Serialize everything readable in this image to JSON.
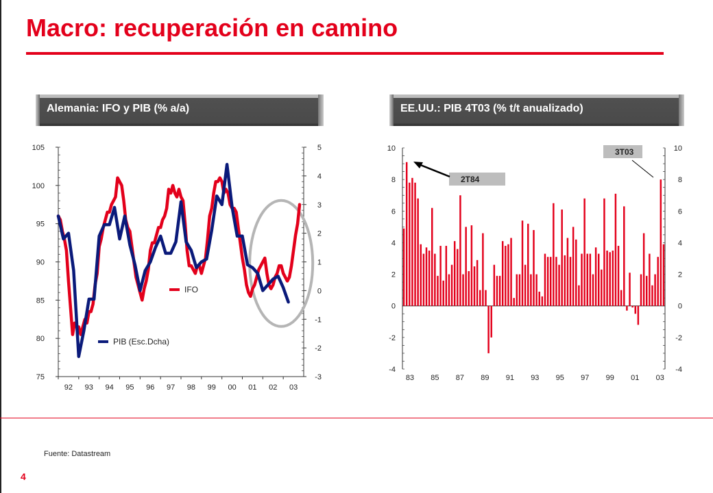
{
  "page": {
    "title": "Macro: recuperación en camino",
    "source": "Fuente: Datastream",
    "page_number": "4",
    "colors": {
      "accent": "#e3001b",
      "navy": "#0a1a7a",
      "grey": "#bdbdbd"
    }
  },
  "chart_data": [
    {
      "type": "line",
      "title": "Alemania: IFO y PIB (% a/a)",
      "x_ticks": [
        "92",
        "93",
        "94",
        "95",
        "96",
        "97",
        "98",
        "99",
        "00",
        "01",
        "02",
        "03"
      ],
      "y_left": {
        "min": 75,
        "max": 105,
        "ticks": [
          "75",
          "80",
          "85",
          "90",
          "95",
          "100",
          "105"
        ]
      },
      "y_right": {
        "min": -3,
        "max": 5,
        "ticks": [
          "-3",
          "-2",
          "-1",
          "0",
          "1",
          "2",
          "3",
          "4",
          "5"
        ]
      },
      "series": [
        {
          "name": "IFO",
          "axis": "left",
          "color": "#e3001b",
          "x": [
            1992.0,
            1992.1,
            1992.2,
            1992.3,
            1992.4,
            1992.5,
            1992.6,
            1992.7,
            1992.8,
            1992.9,
            1993.0,
            1993.1,
            1993.2,
            1993.3,
            1993.4,
            1993.5,
            1993.6,
            1993.7,
            1993.8,
            1993.9,
            1994.0,
            1994.1,
            1994.2,
            1994.3,
            1994.4,
            1994.5,
            1994.6,
            1994.7,
            1994.8,
            1994.9,
            1995.0,
            1995.1,
            1995.2,
            1995.3,
            1995.4,
            1995.5,
            1995.6,
            1995.7,
            1995.8,
            1995.9,
            1996.0,
            1996.1,
            1996.2,
            1996.3,
            1996.4,
            1996.5,
            1996.6,
            1996.7,
            1996.8,
            1996.9,
            1997.0,
            1997.1,
            1997.2,
            1997.3,
            1997.4,
            1997.5,
            1997.6,
            1997.7,
            1997.8,
            1997.9,
            1998.0,
            1998.1,
            1998.2,
            1998.3,
            1998.4,
            1998.5,
            1998.6,
            1998.7,
            1998.8,
            1998.9,
            1999.0,
            1999.1,
            1999.2,
            1999.3,
            1999.4,
            1999.5,
            1999.6,
            1999.7,
            1999.8,
            1999.9,
            2000.0,
            2000.1,
            2000.2,
            2000.3,
            2000.4,
            2000.5,
            2000.6,
            2000.7,
            2000.8,
            2000.9,
            2001.0,
            2001.1,
            2001.2,
            2001.3,
            2001.4,
            2001.5,
            2001.6,
            2001.7,
            2001.8,
            2001.9,
            2002.0,
            2002.1,
            2002.2,
            2002.3,
            2002.4,
            2002.5,
            2002.6,
            2002.7,
            2002.8,
            2002.9,
            2003.0,
            2003.1,
            2003.2,
            2003.3,
            2003.4,
            2003.5,
            2003.6,
            2003.7,
            2003.8
          ],
          "values": [
            96.0,
            95.5,
            94.0,
            93.0,
            91.5,
            87.5,
            84.0,
            80.5,
            82.0,
            81.5,
            81.5,
            80.5,
            81.5,
            82.5,
            82.0,
            83.5,
            83.5,
            84.5,
            87.0,
            88.5,
            92.0,
            93.0,
            94.5,
            95.5,
            96.5,
            96.5,
            97.5,
            98.0,
            98.5,
            101.0,
            100.5,
            100.0,
            98.0,
            95.5,
            94.5,
            94.0,
            92.0,
            90.0,
            88.0,
            87.0,
            86.0,
            85.0,
            86.5,
            87.5,
            89.0,
            91.5,
            92.5,
            92.5,
            93.5,
            94.5,
            94.5,
            95.5,
            96.0,
            97.0,
            99.5,
            99.0,
            100.0,
            99.0,
            98.5,
            99.5,
            98.5,
            98.0,
            95.0,
            91.5,
            89.5,
            89.5,
            89.0,
            88.5,
            89.5,
            89.5,
            88.5,
            89.5,
            90.5,
            93.0,
            96.0,
            97.0,
            99.0,
            100.5,
            100.5,
            101.0,
            100.5,
            99.0,
            99.5,
            99.0,
            97.5,
            97.0,
            97.0,
            96.5,
            94.5,
            92.5,
            90.5,
            89.0,
            87.0,
            86.0,
            85.5,
            86.5,
            87.0,
            88.0,
            89.0,
            89.5,
            90.0,
            90.5,
            88.5,
            87.0,
            86.5,
            87.0,
            88.0,
            88.5,
            89.5,
            89.5,
            88.5,
            88.0,
            87.5,
            88.0,
            89.5,
            91.5,
            93.5,
            95.0,
            97.5
          ]
        },
        {
          "name": "PIB (Esc.Dcha)",
          "axis": "right",
          "color": "#0a1a7a",
          "x": [
            1992.0,
            1992.25,
            1992.5,
            1992.75,
            1993.0,
            1993.25,
            1993.5,
            1993.75,
            1994.0,
            1994.25,
            1994.5,
            1994.75,
            1995.0,
            1995.25,
            1995.5,
            1995.75,
            1996.0,
            1996.25,
            1996.5,
            1996.75,
            1997.0,
            1997.25,
            1997.5,
            1997.75,
            1998.0,
            1998.25,
            1998.5,
            1998.75,
            1999.0,
            1999.25,
            1999.5,
            1999.75,
            2000.0,
            2000.25,
            2000.5,
            2000.75,
            2001.0,
            2001.25,
            2001.5,
            2001.75,
            2002.0,
            2002.25,
            2002.5,
            2002.75,
            2003.0,
            2003.25
          ],
          "values": [
            2.6,
            1.8,
            2.0,
            0.7,
            -2.3,
            -1.4,
            -0.3,
            -0.3,
            1.9,
            2.3,
            2.3,
            2.9,
            1.8,
            2.6,
            1.6,
            0.9,
            0.0,
            0.7,
            1.0,
            1.5,
            1.9,
            1.3,
            1.3,
            1.7,
            3.1,
            1.7,
            1.4,
            0.8,
            1.0,
            1.1,
            2.1,
            3.3,
            3.0,
            4.4,
            2.9,
            1.9,
            1.9,
            0.9,
            0.8,
            0.6,
            0.0,
            0.2,
            0.4,
            0.5,
            0.1,
            -0.4
          ]
        }
      ],
      "legend": [
        {
          "label": "IFO",
          "color": "#e3001b"
        },
        {
          "label": "PIB (Esc.Dcha)",
          "color": "#0a1a7a"
        }
      ]
    },
    {
      "type": "bar",
      "title": "EE.UU.: PIB 4T03 (% t/t anualizado)",
      "x_ticks": [
        "83",
        "85",
        "87",
        "89",
        "91",
        "93",
        "95",
        "97",
        "99",
        "01",
        "03"
      ],
      "x_start": 1983.0,
      "x_end": 2004.0,
      "y_axis": {
        "min": -4,
        "max": 10,
        "ticks": [
          "-4",
          "-2",
          "0",
          "2",
          "4",
          "6",
          "8",
          "10"
        ]
      },
      "bar_color": "#e3001b",
      "values": [
        4.9,
        9.1,
        7.8,
        8.1,
        7.8,
        6.8,
        3.9,
        3.3,
        3.7,
        3.5,
        6.2,
        3.3,
        1.9,
        3.8,
        1.6,
        3.8,
        2.0,
        2.6,
        4.1,
        3.6,
        7.0,
        2.0,
        5.0,
        2.2,
        5.1,
        2.5,
        2.9,
        1.0,
        4.6,
        1.0,
        -3.0,
        -2.0,
        2.6,
        1.9,
        1.9,
        4.1,
        3.8,
        3.9,
        4.3,
        0.5,
        2.0,
        2.0,
        5.4,
        2.6,
        5.2,
        2.0,
        4.8,
        2.0,
        0.9,
        0.6,
        3.3,
        3.1,
        3.1,
        6.5,
        3.1,
        2.6,
        6.1,
        3.2,
        4.3,
        3.1,
        5.0,
        4.2,
        1.3,
        3.3,
        6.8,
        3.3,
        3.3,
        2.0,
        3.7,
        3.3,
        2.3,
        6.8,
        3.5,
        3.4,
        3.5,
        7.1,
        3.8,
        1.0,
        6.3,
        -0.3,
        2.1,
        -0.1,
        -0.5,
        -1.2,
        2.0,
        4.6,
        1.9,
        3.3,
        1.3,
        2.0,
        3.1,
        8.0,
        3.9
      ],
      "annotations": [
        {
          "label": "2T84"
        },
        {
          "label": "3T03"
        }
      ]
    }
  ]
}
